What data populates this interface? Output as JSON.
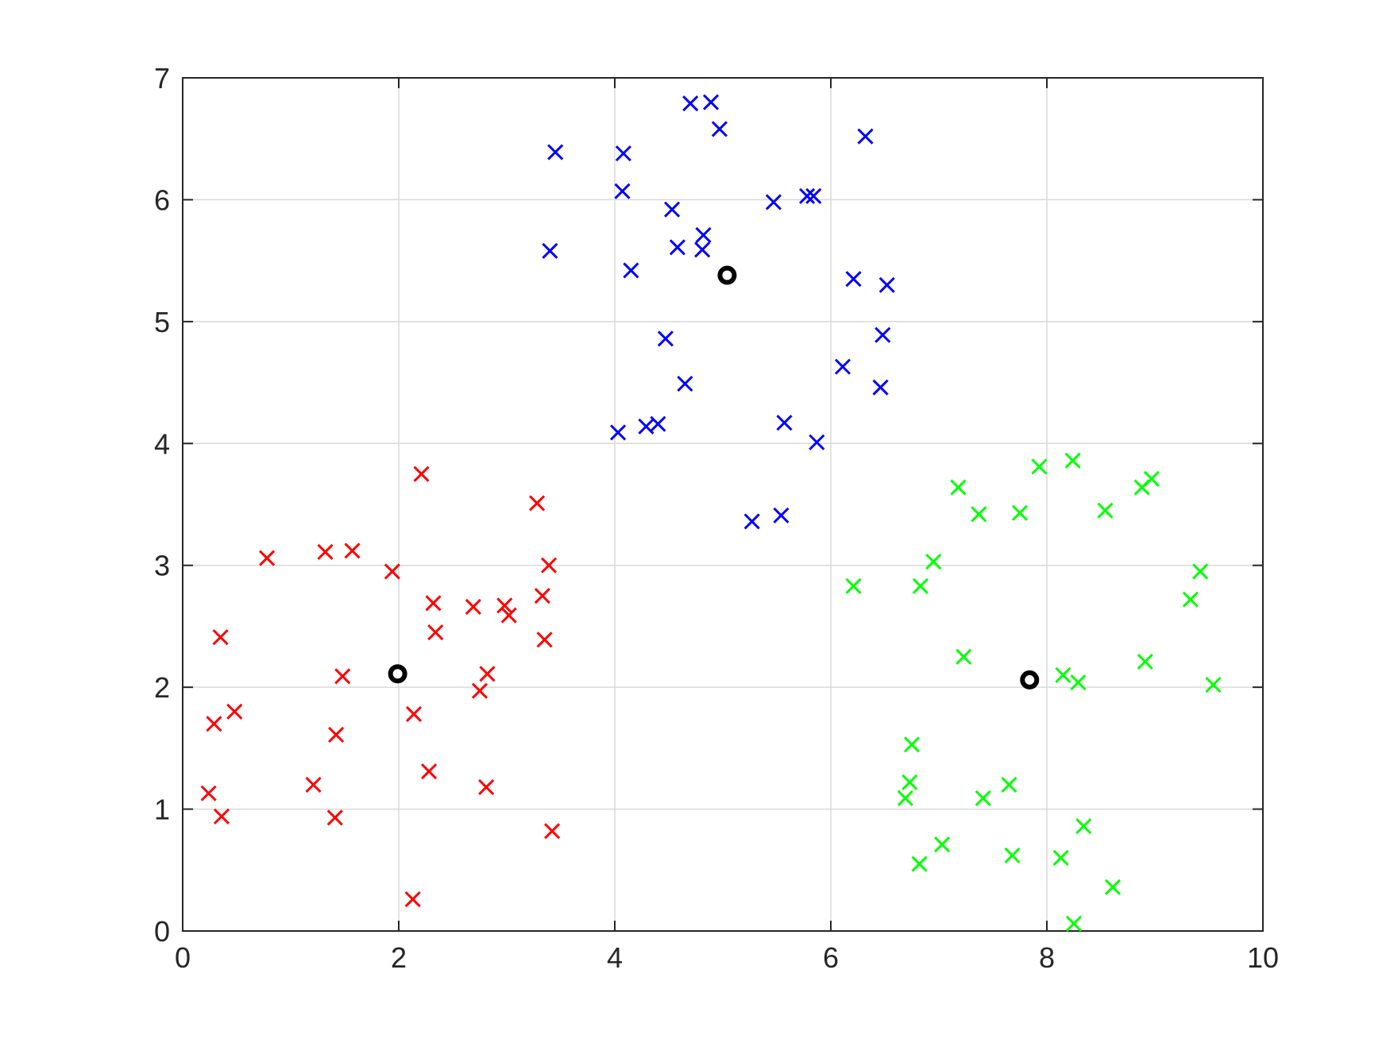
{
  "chart_data": {
    "type": "scatter",
    "title": "",
    "xlabel": "",
    "ylabel": "",
    "xlim": [
      0,
      10
    ],
    "ylim": [
      0,
      7
    ],
    "xticks": [
      0,
      2,
      4,
      6,
      8,
      10
    ],
    "yticks": [
      0,
      1,
      2,
      3,
      4,
      5,
      6,
      7
    ],
    "grid": true,
    "legend": "none",
    "series": [
      {
        "color": "#ff0000",
        "marker": "x",
        "points": [
          [
            0.24,
            1.13
          ],
          [
            0.29,
            1.7
          ],
          [
            0.35,
            2.41
          ],
          [
            0.36,
            0.94
          ],
          [
            0.48,
            1.8
          ],
          [
            0.78,
            3.06
          ],
          [
            1.21,
            1.2
          ],
          [
            1.32,
            3.11
          ],
          [
            1.41,
            0.93
          ],
          [
            1.42,
            1.61
          ],
          [
            1.48,
            2.09
          ],
          [
            1.57,
            3.12
          ],
          [
            1.94,
            2.95
          ],
          [
            2.13,
            0.26
          ],
          [
            2.14,
            1.78
          ],
          [
            2.21,
            3.75
          ],
          [
            2.28,
            1.31
          ],
          [
            2.32,
            2.69
          ],
          [
            2.34,
            2.45
          ],
          [
            2.69,
            2.66
          ],
          [
            2.75,
            1.97
          ],
          [
            2.81,
            1.18
          ],
          [
            2.82,
            2.11
          ],
          [
            2.98,
            2.67
          ],
          [
            3.02,
            2.59
          ],
          [
            3.28,
            3.51
          ],
          [
            3.33,
            2.75
          ],
          [
            3.35,
            2.39
          ],
          [
            3.39,
            3.0
          ],
          [
            3.42,
            0.82
          ]
        ]
      },
      {
        "color": "#0000ff",
        "marker": "x",
        "points": [
          [
            3.4,
            5.58
          ],
          [
            3.45,
            6.39
          ],
          [
            4.03,
            4.09
          ],
          [
            4.07,
            6.07
          ],
          [
            4.08,
            6.38
          ],
          [
            4.15,
            5.42
          ],
          [
            4.29,
            4.14
          ],
          [
            4.4,
            4.16
          ],
          [
            4.47,
            4.86
          ],
          [
            4.53,
            5.92
          ],
          [
            4.58,
            5.61
          ],
          [
            4.65,
            4.49
          ],
          [
            4.7,
            6.79
          ],
          [
            4.81,
            5.59
          ],
          [
            4.82,
            5.71
          ],
          [
            4.89,
            6.8
          ],
          [
            4.97,
            6.58
          ],
          [
            5.27,
            3.36
          ],
          [
            5.47,
            5.98
          ],
          [
            5.54,
            3.41
          ],
          [
            5.57,
            4.17
          ],
          [
            5.78,
            6.03
          ],
          [
            5.84,
            6.03
          ],
          [
            5.87,
            4.01
          ],
          [
            6.11,
            4.63
          ],
          [
            6.21,
            5.35
          ],
          [
            6.32,
            6.52
          ],
          [
            6.46,
            4.46
          ],
          [
            6.48,
            4.89
          ],
          [
            6.52,
            5.3
          ]
        ]
      },
      {
        "color": "#00ff00",
        "marker": "x",
        "points": [
          [
            6.21,
            2.83
          ],
          [
            6.69,
            1.09
          ],
          [
            6.73,
            1.22
          ],
          [
            6.75,
            1.53
          ],
          [
            6.82,
            0.55
          ],
          [
            6.83,
            2.83
          ],
          [
            6.95,
            3.03
          ],
          [
            7.03,
            0.71
          ],
          [
            7.18,
            3.64
          ],
          [
            7.23,
            2.25
          ],
          [
            7.37,
            3.42
          ],
          [
            7.41,
            1.09
          ],
          [
            7.65,
            1.2
          ],
          [
            7.68,
            0.62
          ],
          [
            7.75,
            3.43
          ],
          [
            7.93,
            3.81
          ],
          [
            8.13,
            0.6
          ],
          [
            8.15,
            2.1
          ],
          [
            8.24,
            3.86
          ],
          [
            8.25,
            0.06
          ],
          [
            8.29,
            2.04
          ],
          [
            8.34,
            0.86
          ],
          [
            8.54,
            3.45
          ],
          [
            8.61,
            0.36
          ],
          [
            8.88,
            3.64
          ],
          [
            8.91,
            2.21
          ],
          [
            8.97,
            3.71
          ],
          [
            9.33,
            2.72
          ],
          [
            9.42,
            2.95
          ],
          [
            9.54,
            2.02
          ]
        ]
      },
      {
        "color": "#000000",
        "marker": "o",
        "points": [
          [
            1.99,
            2.11
          ],
          [
            5.04,
            5.38
          ],
          [
            7.84,
            2.06
          ]
        ]
      }
    ]
  }
}
